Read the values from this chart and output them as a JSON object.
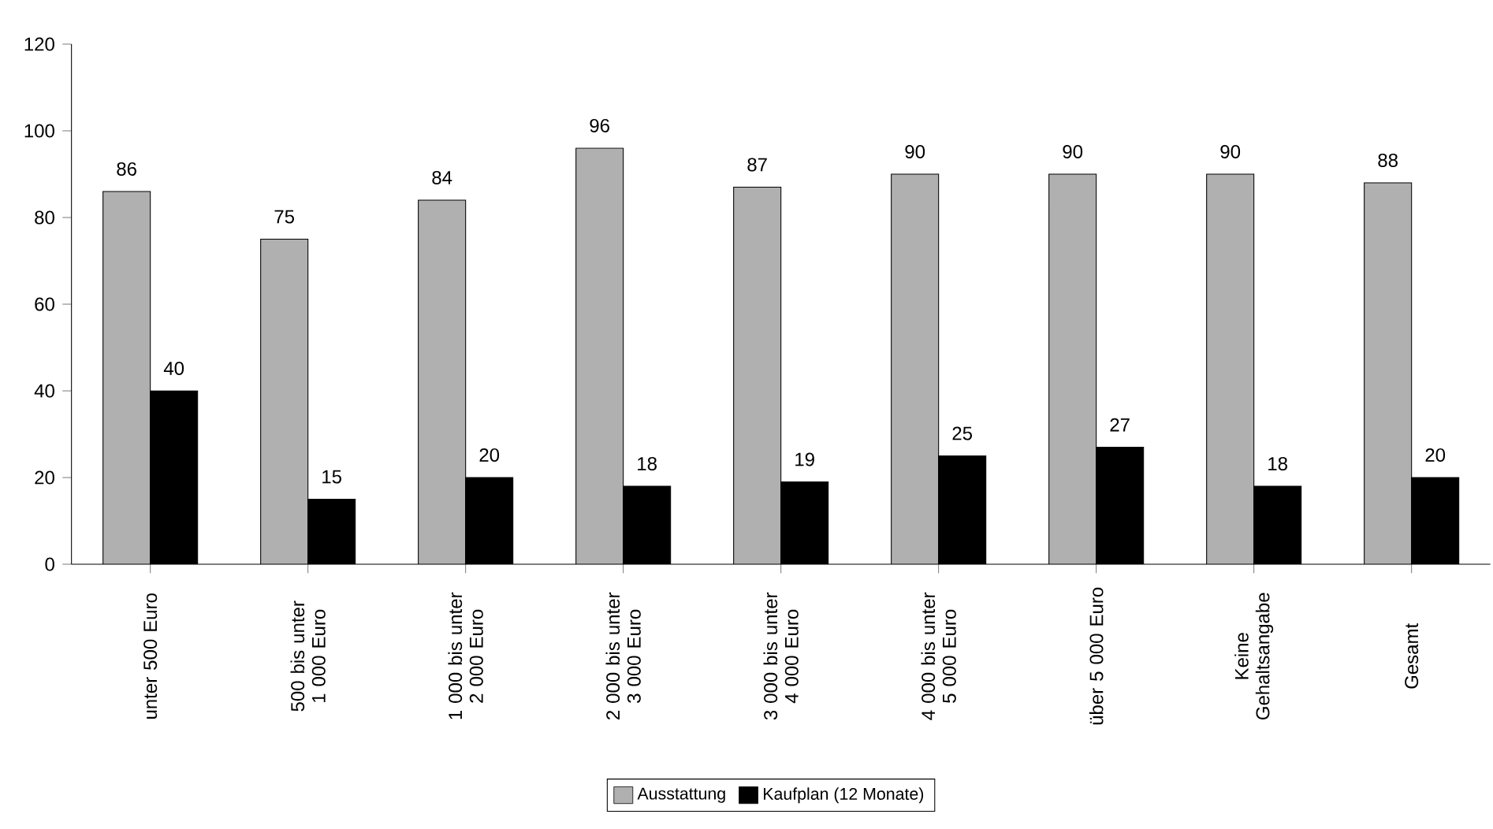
{
  "chart_data": {
    "type": "bar",
    "categories": [
      "unter 500 Euro",
      "500 bis unter 1 000 Euro",
      "1 000 bis unter 2 000 Euro",
      "2 000 bis unter 3 000 Euro",
      "3 000 bis unter 4 000 Euro",
      "4 000 bis unter 5 000 Euro",
      "über 5 000 Euro",
      "Keine Gehaltsangabe",
      "Gesamt"
    ],
    "series": [
      {
        "name": "Ausstattung",
        "color": "#b0b0b0",
        "values": [
          86,
          75,
          84,
          96,
          87,
          90,
          90,
          90,
          88
        ]
      },
      {
        "name": "Kaufplan (12 Monate)",
        "color": "#000000",
        "values": [
          40,
          15,
          20,
          18,
          19,
          25,
          27,
          18,
          20
        ]
      }
    ],
    "ylim": [
      0,
      120
    ],
    "yticks": [
      0,
      20,
      40,
      60,
      80,
      100,
      120
    ],
    "data_labels": true,
    "legend": "bottom",
    "grid": false
  }
}
